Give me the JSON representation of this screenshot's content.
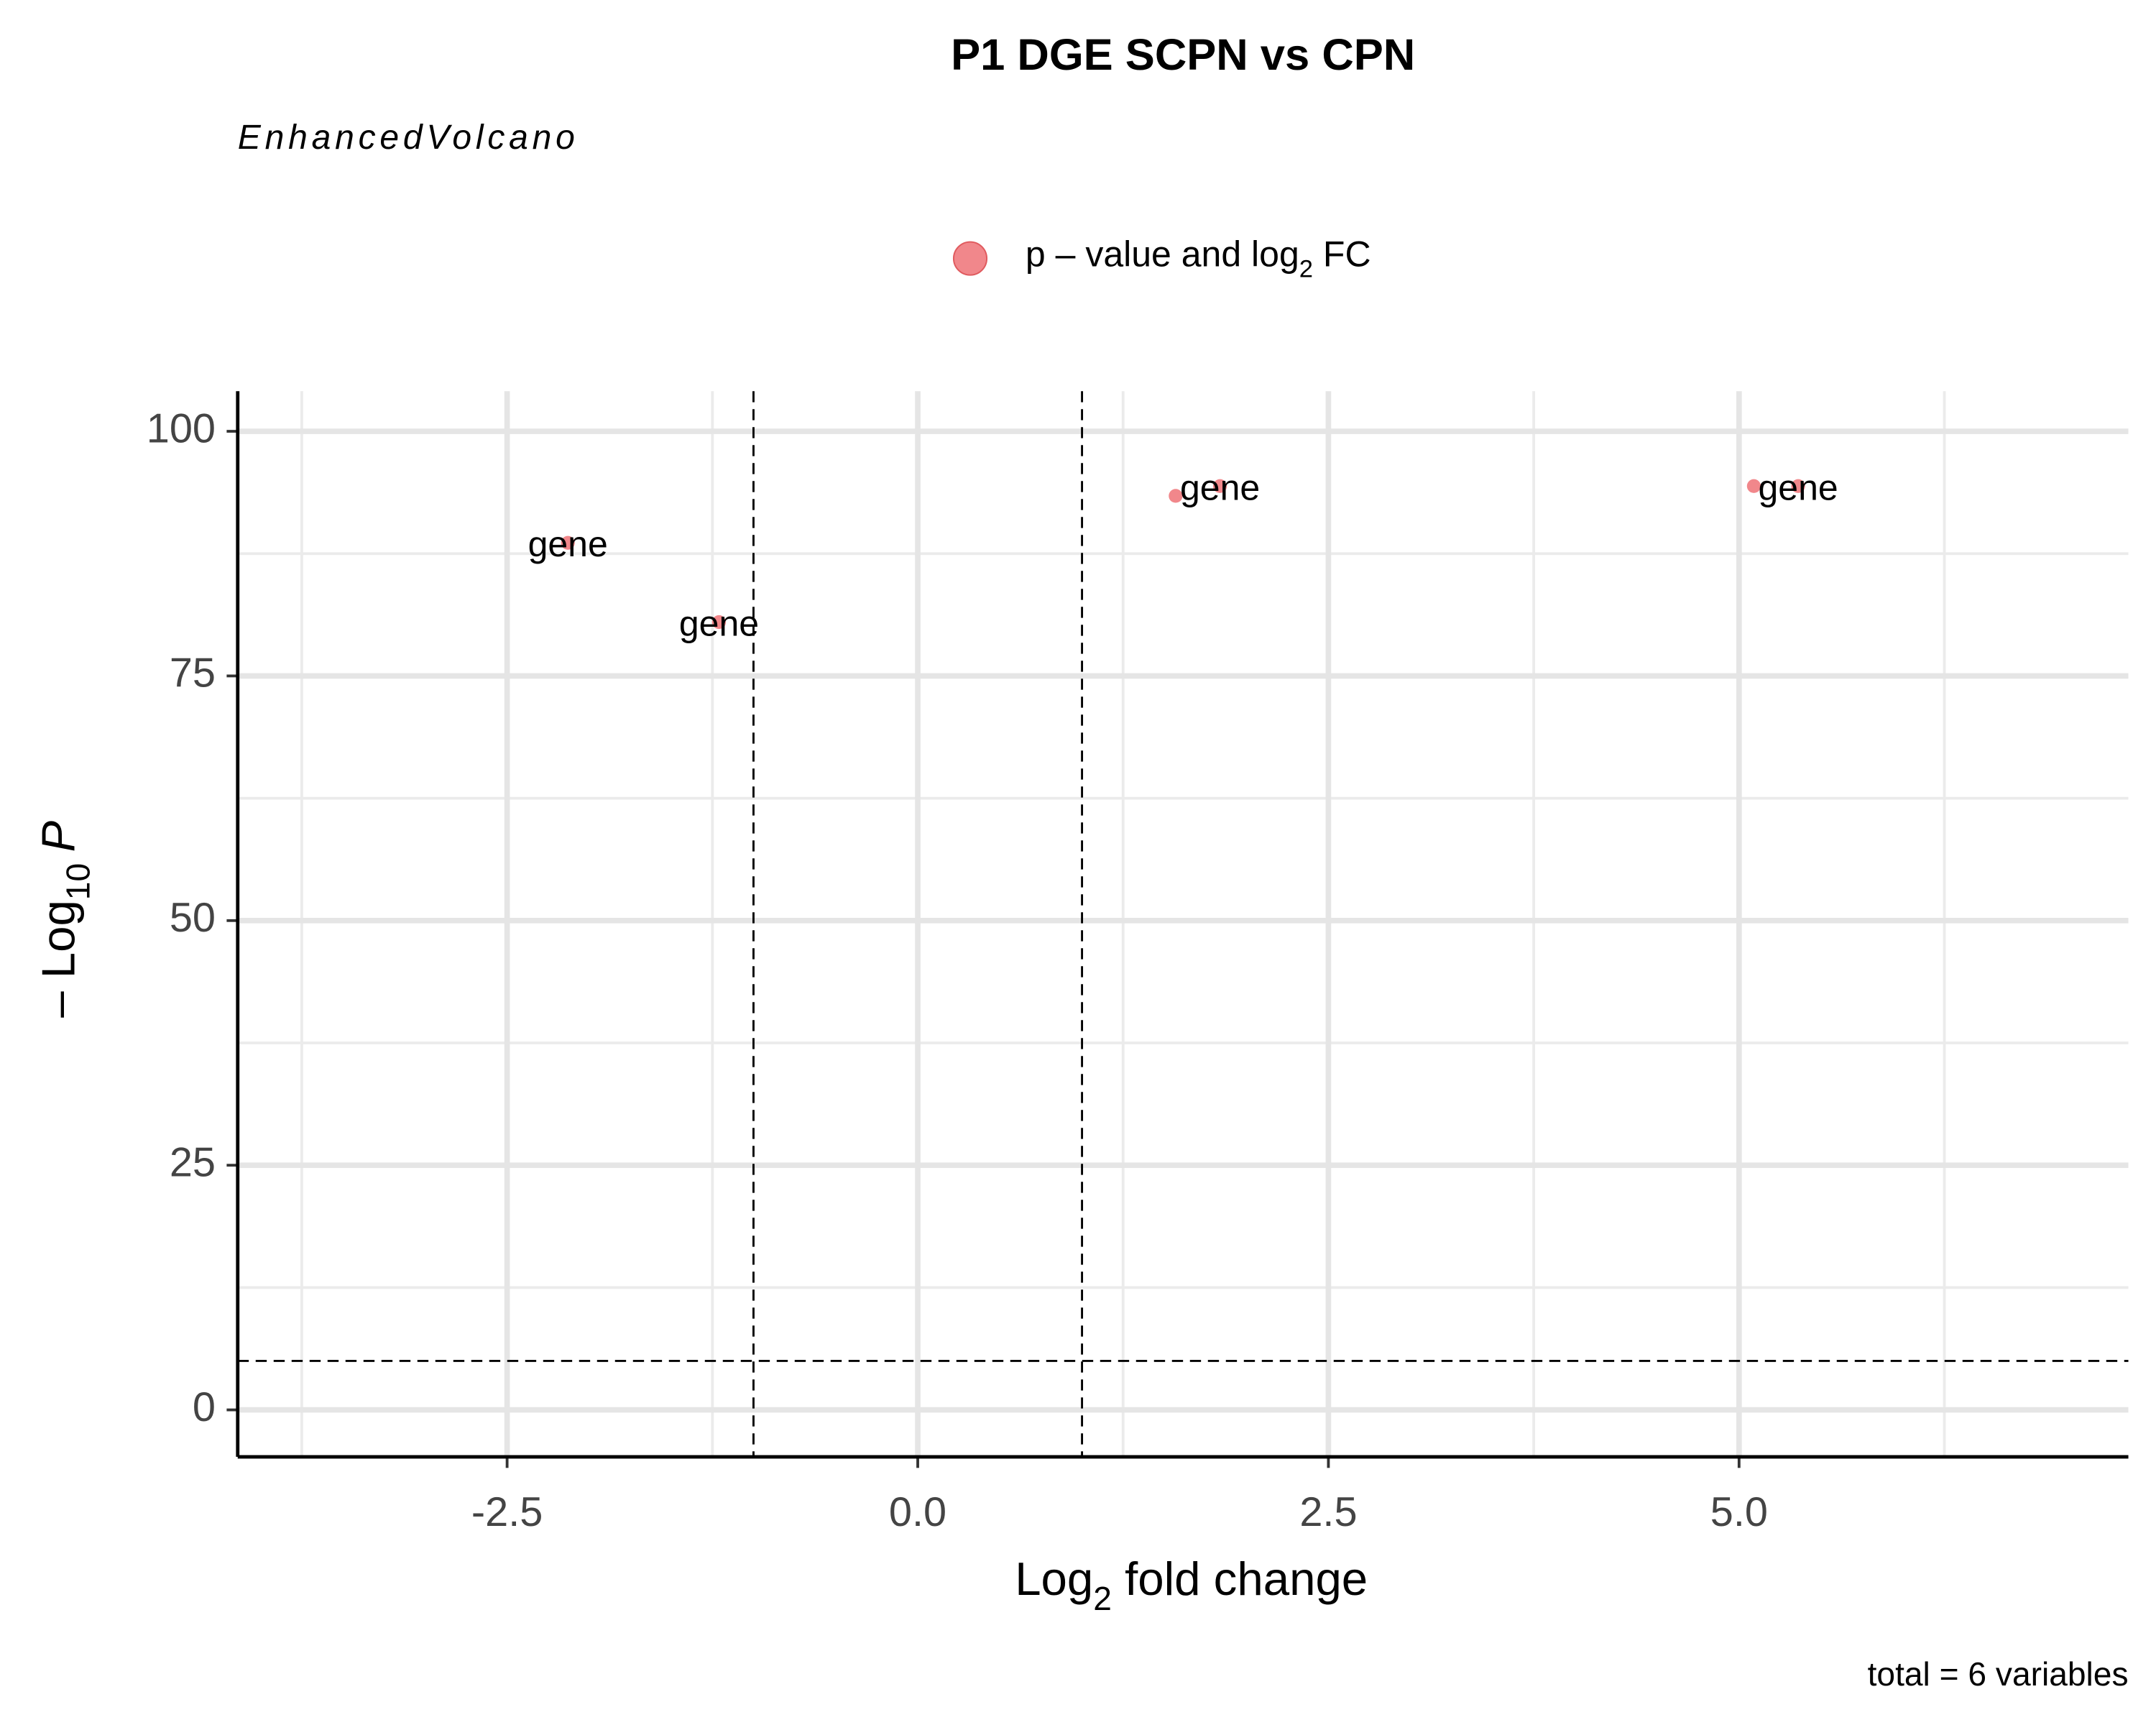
{
  "chart_data": {
    "type": "scatter",
    "title": "P1 DGE SCPN vs CPN",
    "subtitle": "EnhancedVolcano",
    "caption": "total = 6 variables",
    "legend": [
      "p – value and log",
      "2",
      " FC"
    ],
    "xlabel": [
      "Log",
      "2",
      " fold change"
    ],
    "ylabel": [
      "– Log",
      "10",
      "P"
    ],
    "series": [
      {
        "name": "p – value and log2 FC",
        "color": "#f07a7e",
        "x": [
          -2.13,
          -1.21,
          1.57,
          1.84,
          5.09,
          5.36
        ],
        "y": [
          88.6,
          80.5,
          93.4,
          94.4,
          94.4,
          94.4
        ],
        "labels": [
          "gene",
          "gene",
          null,
          "gene",
          null,
          "gene"
        ]
      }
    ],
    "xlim": [
      -4.14,
      7.37
    ],
    "ylim": [
      -4.8,
      104.1
    ],
    "xticks": [
      -2.5,
      {
        "value": 0,
        "label": "0.0"
      },
      2.5,
      {
        "value": 5,
        "label": "5.0"
      }
    ],
    "yticks": [
      0,
      25,
      50,
      75,
      100
    ],
    "xminor": [
      -3.75,
      -1.25,
      1.25,
      3.75,
      6.25
    ],
    "yminor": [
      12.5,
      37.5,
      62.5,
      87.5
    ],
    "vlines": [
      -1,
      1
    ],
    "hline": 5,
    "grid": true
  }
}
